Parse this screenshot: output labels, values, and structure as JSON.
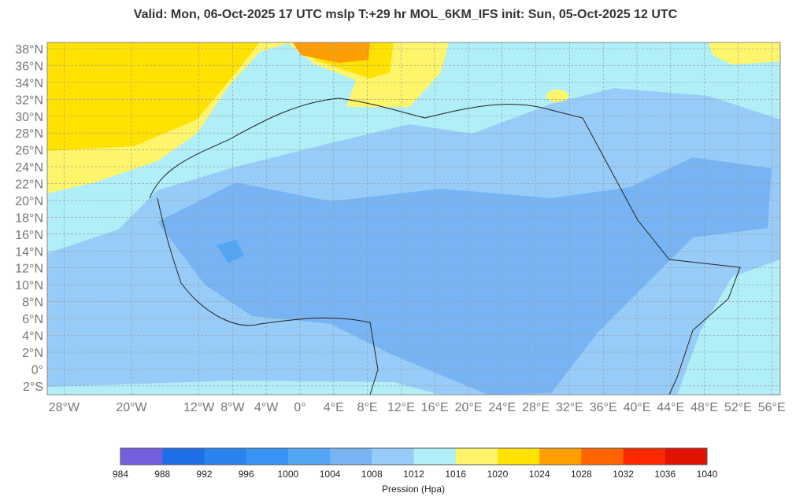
{
  "header": {
    "title": "Valid: Mon, 06-Oct-2025   17 UTC   mslp   T:+29 hr   MOL_6KM_IFS      init: Sun, 05-Oct-2025   12 UTC"
  },
  "map": {
    "lat_labels": [
      {
        "value": 38,
        "label": "38°N"
      },
      {
        "value": 36,
        "label": "36°N"
      },
      {
        "value": 34,
        "label": "34°N"
      },
      {
        "value": 32,
        "label": "32°N"
      },
      {
        "value": 30,
        "label": "30°N"
      },
      {
        "value": 28,
        "label": "28°N"
      },
      {
        "value": 26,
        "label": "26°N"
      },
      {
        "value": 24,
        "label": "24°N"
      },
      {
        "value": 22,
        "label": "22°N"
      },
      {
        "value": 20,
        "label": "20°N"
      },
      {
        "value": 18,
        "label": "18°N"
      },
      {
        "value": 16,
        "label": "16°N"
      },
      {
        "value": 14,
        "label": "14°N"
      },
      {
        "value": 12,
        "label": "12°N"
      },
      {
        "value": 10,
        "label": "10°N"
      },
      {
        "value": 8,
        "label": "8°N"
      },
      {
        "value": 6,
        "label": "6°N"
      },
      {
        "value": 4,
        "label": "4°N"
      },
      {
        "value": 2,
        "label": "2°N"
      },
      {
        "value": 0,
        "label": "0°"
      },
      {
        "value": -2,
        "label": "2°S"
      }
    ],
    "lon_labels": [
      {
        "value": -28,
        "label": "28°W"
      },
      {
        "value": -20,
        "label": "20°W"
      },
      {
        "value": -12,
        "label": "12°W"
      },
      {
        "value": -8,
        "label": "8°W"
      },
      {
        "value": -4,
        "label": "4°W"
      },
      {
        "value": 0,
        "label": "0°"
      },
      {
        "value": 4,
        "label": "4°E"
      },
      {
        "value": 8,
        "label": "8°E"
      },
      {
        "value": 12,
        "label": "12°E"
      },
      {
        "value": 16,
        "label": "16°E"
      },
      {
        "value": 20,
        "label": "20°E"
      },
      {
        "value": 24,
        "label": "24°E"
      },
      {
        "value": 28,
        "label": "28°E"
      },
      {
        "value": 32,
        "label": "32°E"
      },
      {
        "value": 36,
        "label": "36°E"
      },
      {
        "value": 40,
        "label": "40°E"
      },
      {
        "value": 44,
        "label": "44°E"
      },
      {
        "value": 48,
        "label": "48°E"
      },
      {
        "value": 52,
        "label": "52°E"
      },
      {
        "value": 56,
        "label": "56°E"
      }
    ]
  },
  "colorbar": {
    "ticks": [
      984,
      988,
      992,
      996,
      1000,
      1004,
      1008,
      1012,
      1016,
      1020,
      1024,
      1028,
      1032,
      1036,
      1040
    ],
    "colors": [
      "#7460dc",
      "#1e6ee8",
      "#2a84ee",
      "#3894f2",
      "#52a6f4",
      "#78b4f4",
      "#98ccf8",
      "#b0eef8",
      "#fff56a",
      "#ffe200",
      "#ff9e00",
      "#ff6400",
      "#ff2a00",
      "#e01400"
    ],
    "label": "Pression (Hpa)"
  }
}
